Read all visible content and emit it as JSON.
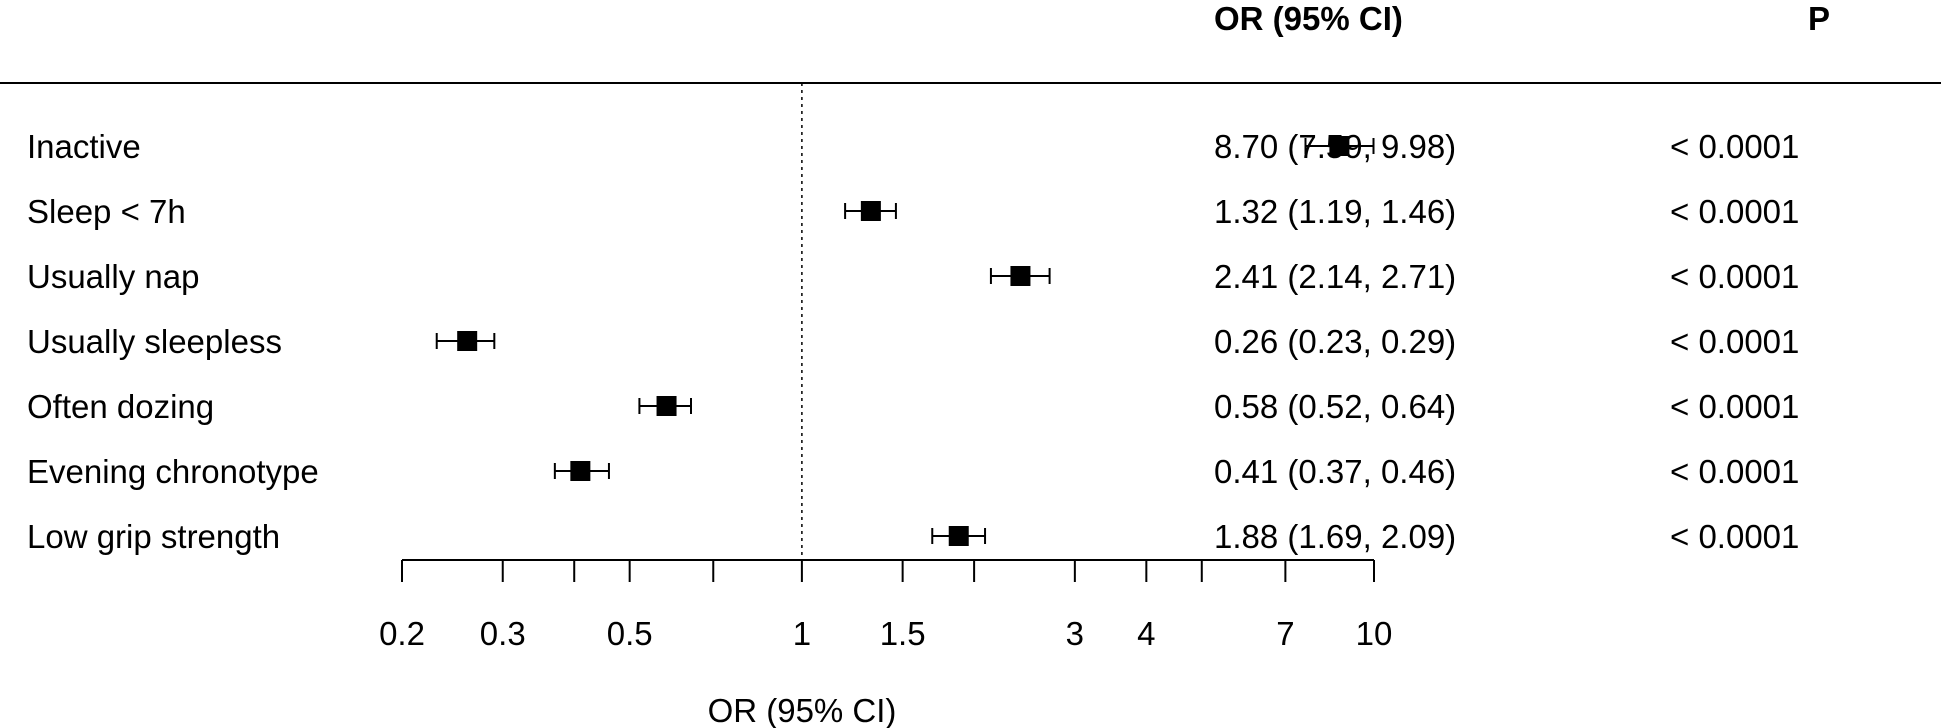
{
  "header": {
    "or_column_title": "OR (95% CI)",
    "p_column_title": "P"
  },
  "chart_data": {
    "type": "forest",
    "xlabel": "OR (95% CI)",
    "x_scale": "log",
    "xlim": [
      0.2,
      10
    ],
    "reference_line": 1,
    "x_ticks": [
      0.2,
      0.3,
      0.4,
      0.5,
      0.7,
      1,
      1.5,
      2,
      3,
      4,
      5,
      7,
      10
    ],
    "x_tick_labels": [
      "0.2",
      "0.3",
      "",
      "0.5",
      "",
      "1",
      "1.5",
      "",
      "3",
      "4",
      "",
      "7",
      "10"
    ],
    "rows": [
      {
        "label": "Inactive",
        "or": 8.7,
        "lower": 7.59,
        "upper": 9.98,
        "or_ci_text": "8.70 (7.59, 9.98)",
        "p_text": "< 0.0001"
      },
      {
        "label": "Sleep < 7h",
        "or": 1.32,
        "lower": 1.19,
        "upper": 1.46,
        "or_ci_text": "1.32 (1.19, 1.46)",
        "p_text": "< 0.0001"
      },
      {
        "label": "Usually nap",
        "or": 2.41,
        "lower": 2.14,
        "upper": 2.71,
        "or_ci_text": "2.41 (2.14, 2.71)",
        "p_text": "< 0.0001"
      },
      {
        "label": "Usually sleepless",
        "or": 0.26,
        "lower": 0.23,
        "upper": 0.29,
        "or_ci_text": "0.26 (0.23, 0.29)",
        "p_text": "< 0.0001"
      },
      {
        "label": "Often dozing",
        "or": 0.58,
        "lower": 0.52,
        "upper": 0.64,
        "or_ci_text": "0.58 (0.52, 0.64)",
        "p_text": "< 0.0001"
      },
      {
        "label": "Evening chronotype",
        "or": 0.41,
        "lower": 0.37,
        "upper": 0.46,
        "or_ci_text": "0.41 (0.37, 0.46)",
        "p_text": "< 0.0001"
      },
      {
        "label": "Low grip strength",
        "or": 1.88,
        "lower": 1.69,
        "upper": 2.09,
        "or_ci_text": "1.88 (1.69, 2.09)",
        "p_text": "< 0.0001"
      }
    ]
  }
}
